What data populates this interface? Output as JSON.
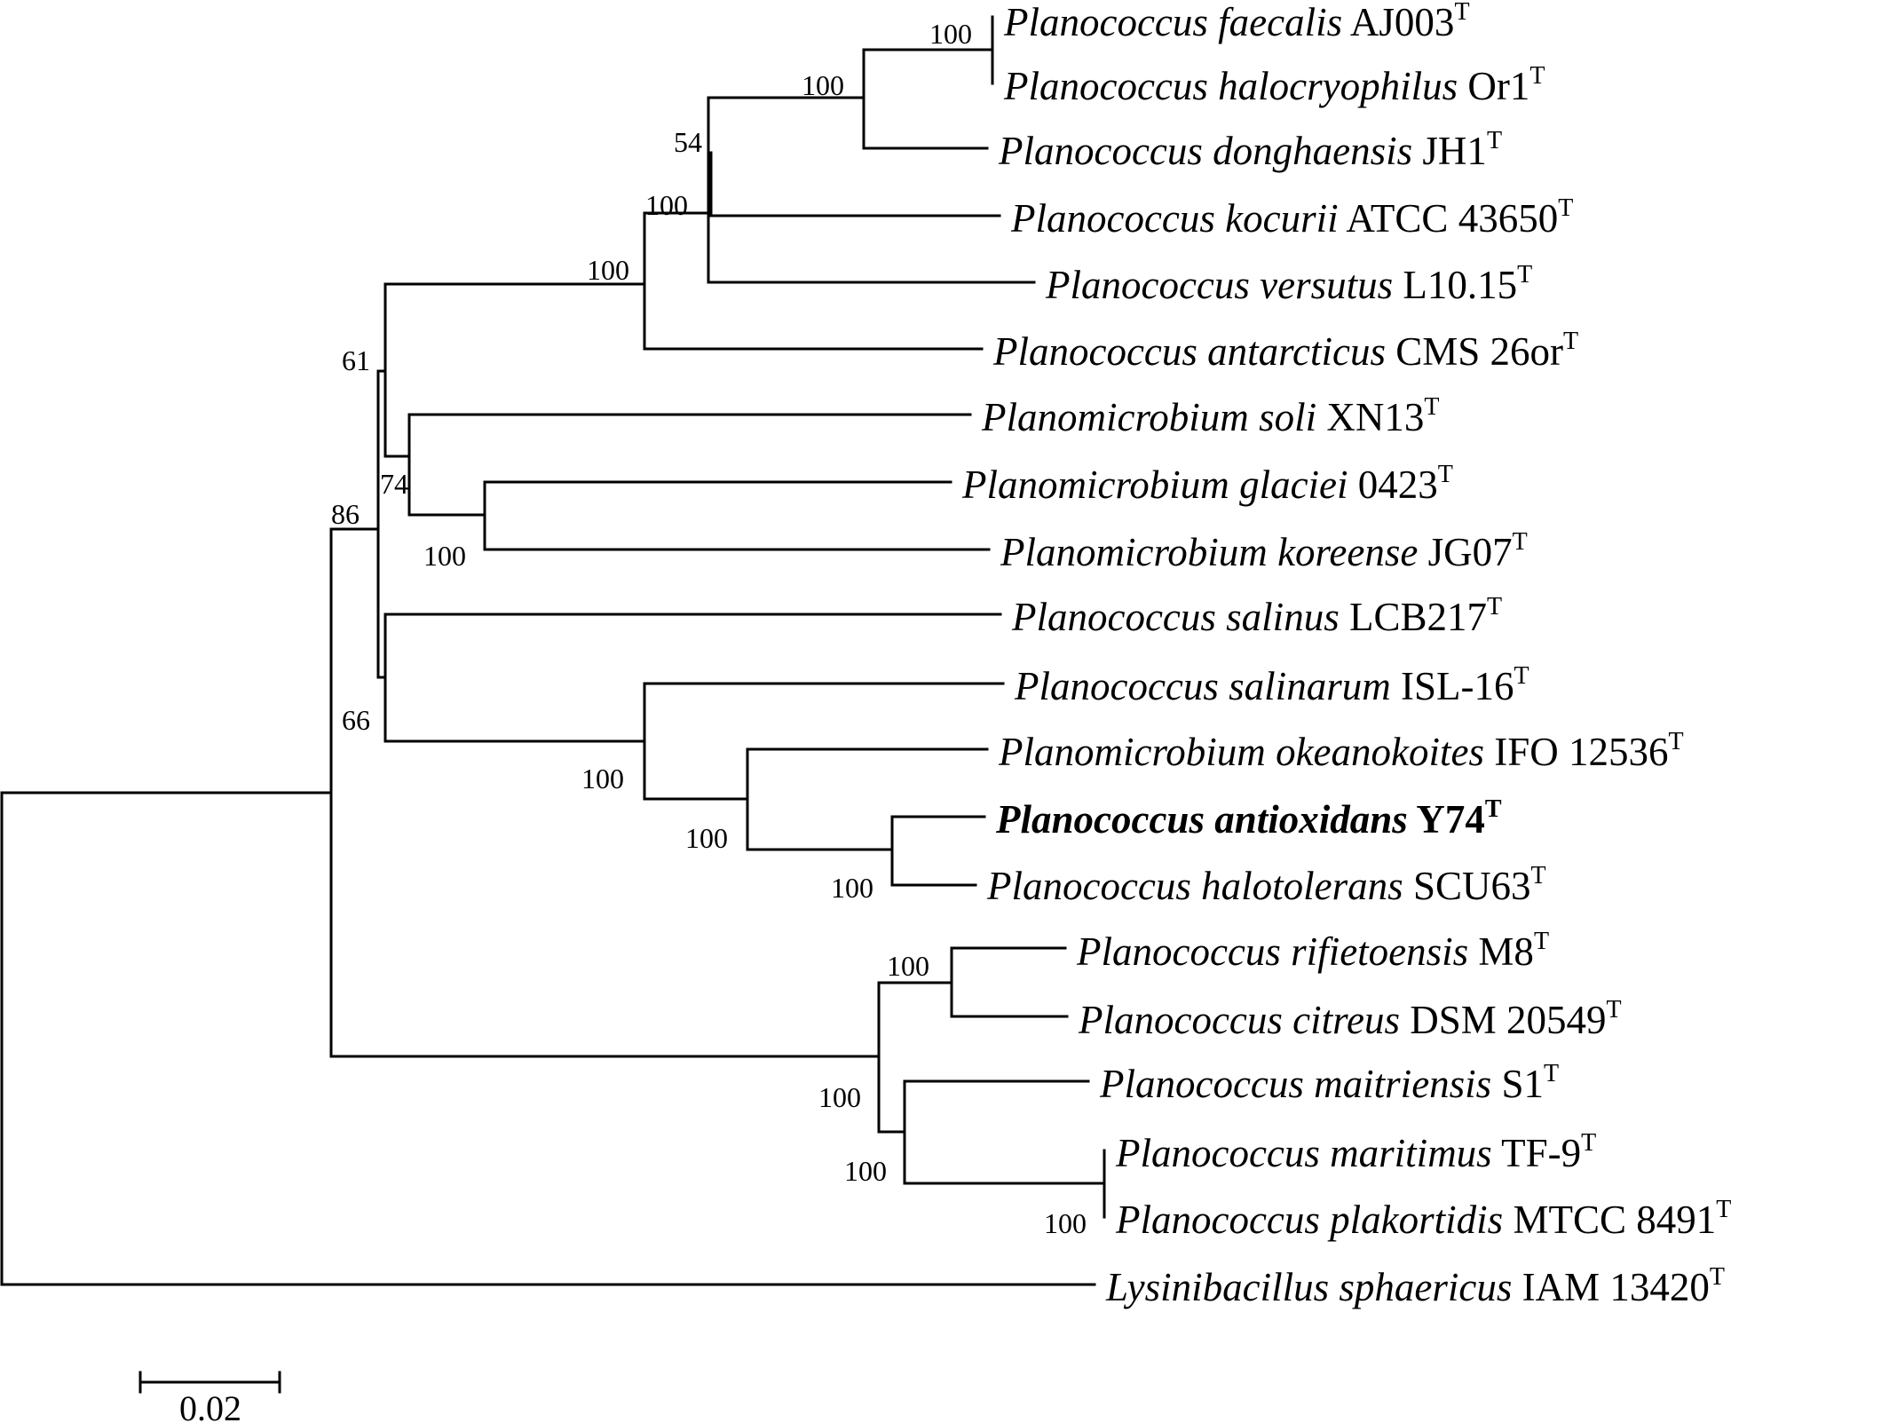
{
  "taxa": [
    {
      "genus": "Planococcus",
      "epithet": "faecalis",
      "strain": "AJ003",
      "type_mark": "T"
    },
    {
      "genus": "Planococcus",
      "epithet": "halocryophilus",
      "strain": "Or1",
      "type_mark": "T"
    },
    {
      "genus": "Planococcus",
      "epithet": "donghaensis",
      "strain": "JH1",
      "type_mark": "T"
    },
    {
      "genus": "Planococcus",
      "epithet": "kocurii",
      "strain": "ATCC 43650",
      "type_mark": "T"
    },
    {
      "genus": "Planococcus",
      "epithet": "versutus",
      "strain": "L10.15",
      "type_mark": "T"
    },
    {
      "genus": "Planococcus",
      "epithet": "antarcticus",
      "strain": "CMS 26or",
      "type_mark": "T"
    },
    {
      "genus": "Planomicrobium",
      "epithet": "soli",
      "strain": "XN13",
      "type_mark": "T"
    },
    {
      "genus": "Planomicrobium",
      "epithet": "glaciei",
      "strain": "0423",
      "type_mark": "T"
    },
    {
      "genus": "Planomicrobium",
      "epithet": "koreense",
      "strain": "JG07",
      "type_mark": "T"
    },
    {
      "genus": "Planococcus",
      "epithet": "salinus",
      "strain": "LCB217",
      "type_mark": "T"
    },
    {
      "genus": "Planococcus",
      "epithet": "salinarum",
      "strain": "ISL-16",
      "type_mark": "T"
    },
    {
      "genus": "Planomicrobium",
      "epithet": "okeanokoites",
      "strain": "IFO 12536",
      "type_mark": "T"
    },
    {
      "genus": "Planococcus",
      "epithet": "antioxidans",
      "strain": "Y74",
      "type_mark": "T",
      "highlight": true
    },
    {
      "genus": "Planococcus",
      "epithet": "halotolerans",
      "strain": "SCU63",
      "type_mark": "T"
    },
    {
      "genus": "Planococcus",
      "epithet": "rifietoensis",
      "strain": "M8",
      "type_mark": "T"
    },
    {
      "genus": "Planococcus",
      "epithet": "citreus",
      "strain": "DSM 20549",
      "type_mark": "T"
    },
    {
      "genus": "Planococcus",
      "epithet": "maitriensis",
      "strain": "S1",
      "type_mark": "T"
    },
    {
      "genus": "Planococcus",
      "epithet": "maritimus",
      "strain": "TF-9",
      "type_mark": "T"
    },
    {
      "genus": "Planococcus",
      "epithet": "plakortidis",
      "strain": "MTCC 8491",
      "type_mark": "T"
    },
    {
      "genus": "Lysinibacillus",
      "epithet": "sphaericus",
      "strain": "IAM 13420",
      "type_mark": "T"
    }
  ],
  "bootstrap": [
    "100",
    "100",
    "54",
    "100",
    "100",
    "61",
    "74",
    "100",
    "86",
    "66",
    "100",
    "100",
    "100",
    "100",
    "100",
    "100",
    "100"
  ],
  "scale_bar": {
    "label": "0.02"
  }
}
